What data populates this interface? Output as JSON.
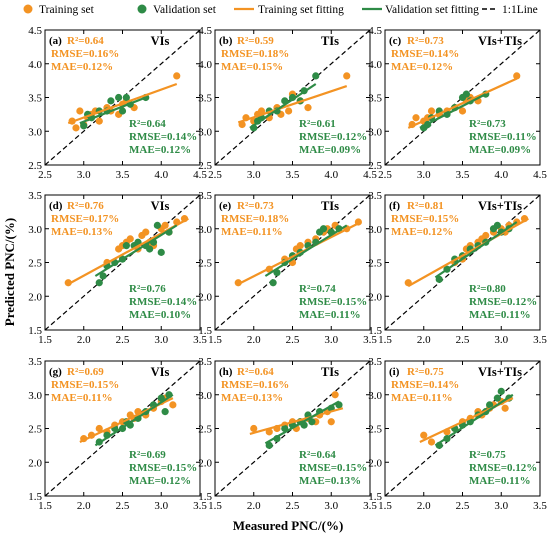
{
  "colors": {
    "training": "#F39323",
    "validation": "#2E8B46",
    "oneone": "#000000"
  },
  "legend": {
    "training_set": "Training set",
    "validation_set": "Validation set",
    "training_fit": "Training set fitting",
    "validation_fit": "Validation set fitting",
    "one_one": "1:1Line"
  },
  "axes": {
    "ylabel": "Predicted PNC/(%)",
    "xlabel": "Measured PNC/(%)"
  },
  "chart_data": [
    {
      "type": "scatter",
      "panel": "(a)",
      "title": "VIs",
      "xlim": [
        2.5,
        4.5
      ],
      "ylim": [
        2.5,
        4.5
      ],
      "xticks": [
        "2.5",
        "3.0",
        "3.5",
        "4.0",
        "4.5"
      ],
      "yticks": [
        "2.5",
        "3.0",
        "3.5",
        "4.0",
        "4.5"
      ],
      "train_stats": [
        "R²=0.64",
        "RMSE=0.16%",
        "MAE=0.12%"
      ],
      "val_stats": [
        "R²=0.64",
        "RMSE=0.14%",
        "MAE=0.12%"
      ],
      "train_points": [
        [
          2.85,
          3.15
        ],
        [
          2.9,
          3.05
        ],
        [
          2.95,
          3.3
        ],
        [
          3.0,
          3.1
        ],
        [
          3.05,
          3.2
        ],
        [
          3.1,
          3.25
        ],
        [
          3.15,
          3.3
        ],
        [
          3.2,
          3.15
        ],
        [
          3.3,
          3.35
        ],
        [
          3.35,
          3.3
        ],
        [
          3.45,
          3.25
        ],
        [
          3.5,
          3.4
        ],
        [
          3.55,
          3.45
        ],
        [
          3.65,
          3.35
        ],
        [
          4.2,
          3.82
        ]
      ],
      "val_points": [
        [
          3.0,
          3.08
        ],
        [
          3.05,
          3.25
        ],
        [
          3.1,
          3.2
        ],
        [
          3.2,
          3.3
        ],
        [
          3.3,
          3.3
        ],
        [
          3.35,
          3.45
        ],
        [
          3.45,
          3.5
        ],
        [
          3.5,
          3.3
        ],
        [
          3.55,
          3.5
        ],
        [
          3.6,
          3.4
        ],
        [
          3.8,
          3.5
        ]
      ],
      "train_fit": [
        [
          2.8,
          3.12
        ],
        [
          4.2,
          3.7
        ]
      ],
      "val_fit": [
        [
          2.95,
          3.12
        ],
        [
          3.8,
          3.5
        ]
      ]
    },
    {
      "type": "scatter",
      "panel": "(b)",
      "title": "TIs",
      "xlim": [
        2.5,
        4.5
      ],
      "ylim": [
        2.5,
        4.5
      ],
      "xticks": [
        "2.5",
        "3.0",
        "3.5",
        "4.0",
        "4.5"
      ],
      "yticks": [
        "2.5",
        "3.0",
        "3.5",
        "4.0",
        "4.5"
      ],
      "train_stats": [
        "R²=0.59",
        "RMSE=0.18%",
        "MAE=0.15%"
      ],
      "val_stats": [
        "R²=0.61",
        "RMSE=0.12%",
        "MAE=0.09%"
      ],
      "train_points": [
        [
          2.85,
          3.1
        ],
        [
          2.9,
          3.2
        ],
        [
          3.0,
          3.15
        ],
        [
          3.05,
          3.25
        ],
        [
          3.1,
          3.3
        ],
        [
          3.2,
          3.2
        ],
        [
          3.3,
          3.35
        ],
        [
          3.35,
          3.25
        ],
        [
          3.45,
          3.3
        ],
        [
          3.5,
          3.55
        ],
        [
          3.6,
          3.45
        ],
        [
          3.7,
          3.35
        ],
        [
          4.2,
          3.82
        ]
      ],
      "val_points": [
        [
          3.0,
          3.05
        ],
        [
          3.05,
          3.15
        ],
        [
          3.1,
          3.2
        ],
        [
          3.2,
          3.3
        ],
        [
          3.3,
          3.3
        ],
        [
          3.4,
          3.45
        ],
        [
          3.5,
          3.5
        ],
        [
          3.6,
          3.45
        ],
        [
          3.65,
          3.6
        ],
        [
          3.8,
          3.82
        ]
      ],
      "train_fit": [
        [
          2.8,
          3.13
        ],
        [
          4.2,
          3.67
        ]
      ],
      "val_fit": [
        [
          2.95,
          3.05
        ],
        [
          3.8,
          3.7
        ]
      ]
    },
    {
      "type": "scatter",
      "panel": "(c)",
      "title": "VIs+TIs",
      "xlim": [
        2.5,
        4.5
      ],
      "ylim": [
        2.5,
        4.5
      ],
      "xticks": [
        "2.5",
        "3.0",
        "3.5",
        "4.0",
        "4.5"
      ],
      "yticks": [
        "2.5",
        "3.0",
        "3.5",
        "4.0",
        "4.5"
      ],
      "train_stats": [
        "R²=0.73",
        "RMSE=0.14%",
        "MAE=0.12%"
      ],
      "val_stats": [
        "R²=0.73",
        "RMSE=0.11%",
        "MAE=0.09%"
      ],
      "train_points": [
        [
          2.85,
          3.1
        ],
        [
          2.9,
          3.2
        ],
        [
          3.0,
          3.15
        ],
        [
          3.05,
          3.2
        ],
        [
          3.1,
          3.3
        ],
        [
          3.2,
          3.25
        ],
        [
          3.3,
          3.3
        ],
        [
          3.4,
          3.35
        ],
        [
          3.5,
          3.3
        ],
        [
          3.55,
          3.45
        ],
        [
          3.6,
          3.5
        ],
        [
          3.7,
          3.45
        ],
        [
          4.2,
          3.82
        ]
      ],
      "val_points": [
        [
          3.0,
          3.05
        ],
        [
          3.05,
          3.1
        ],
        [
          3.1,
          3.2
        ],
        [
          3.2,
          3.3
        ],
        [
          3.3,
          3.25
        ],
        [
          3.4,
          3.35
        ],
        [
          3.5,
          3.5
        ],
        [
          3.55,
          3.55
        ],
        [
          3.6,
          3.45
        ],
        [
          3.8,
          3.55
        ]
      ],
      "train_fit": [
        [
          2.8,
          3.05
        ],
        [
          4.2,
          3.78
        ]
      ],
      "val_fit": [
        [
          2.95,
          3.05
        ],
        [
          3.8,
          3.55
        ]
      ]
    },
    {
      "type": "scatter",
      "panel": "(d)",
      "title": "VIs",
      "xlim": [
        1.5,
        3.5
      ],
      "ylim": [
        1.5,
        3.5
      ],
      "xticks": [
        "1.5",
        "2.0",
        "2.5",
        "3.0",
        "3.5"
      ],
      "yticks": [
        "1.5",
        "2.0",
        "2.5",
        "3.0",
        "3.5"
      ],
      "train_stats": [
        "R²=0.76",
        "RMSE=0.17%",
        "MAE=0.13%"
      ],
      "val_stats": [
        "R²=0.76",
        "RMSE=0.14%",
        "MAE=0.10%"
      ],
      "train_points": [
        [
          1.8,
          2.2
        ],
        [
          2.3,
          2.5
        ],
        [
          2.45,
          2.7
        ],
        [
          2.5,
          2.75
        ],
        [
          2.55,
          2.8
        ],
        [
          2.6,
          2.85
        ],
        [
          2.7,
          2.7
        ],
        [
          2.75,
          2.9
        ],
        [
          2.8,
          2.95
        ],
        [
          2.85,
          2.8
        ],
        [
          2.9,
          2.75
        ],
        [
          3.0,
          3.0
        ],
        [
          3.05,
          3.05
        ],
        [
          3.1,
          2.95
        ],
        [
          3.2,
          3.1
        ],
        [
          3.3,
          3.15
        ]
      ],
      "val_points": [
        [
          2.2,
          2.2
        ],
        [
          2.25,
          2.3
        ],
        [
          2.3,
          2.45
        ],
        [
          2.4,
          2.5
        ],
        [
          2.5,
          2.55
        ],
        [
          2.55,
          2.75
        ],
        [
          2.65,
          2.75
        ],
        [
          2.7,
          2.8
        ],
        [
          2.8,
          2.75
        ],
        [
          2.85,
          2.7
        ],
        [
          2.9,
          2.8
        ],
        [
          2.95,
          3.05
        ],
        [
          3.0,
          2.65
        ],
        [
          3.1,
          2.95
        ]
      ],
      "train_fit": [
        [
          1.8,
          2.18
        ],
        [
          3.35,
          3.15
        ]
      ],
      "val_fit": [
        [
          2.15,
          2.3
        ],
        [
          3.2,
          3.05
        ]
      ]
    },
    {
      "type": "scatter",
      "panel": "(e)",
      "title": "TIs",
      "xlim": [
        1.5,
        3.5
      ],
      "ylim": [
        1.5,
        3.5
      ],
      "xticks": [
        "1.5",
        "2.0",
        "2.5",
        "3.0",
        "3.5"
      ],
      "yticks": [
        "1.5",
        "2.0",
        "2.5",
        "3.0",
        "3.5"
      ],
      "train_stats": [
        "R²=0.73",
        "RMSE=0.18%",
        "MAE=0.11%"
      ],
      "val_stats": [
        "R²=0.74",
        "RMSE=0.15%",
        "MAE=0.11%"
      ],
      "train_points": [
        [
          1.8,
          2.2
        ],
        [
          2.2,
          2.4
        ],
        [
          2.4,
          2.55
        ],
        [
          2.5,
          2.5
        ],
        [
          2.55,
          2.7
        ],
        [
          2.6,
          2.75
        ],
        [
          2.7,
          2.8
        ],
        [
          2.8,
          2.85
        ],
        [
          2.9,
          2.95
        ],
        [
          2.95,
          3.0
        ],
        [
          3.0,
          2.95
        ],
        [
          3.05,
          3.05
        ],
        [
          3.2,
          3.0
        ],
        [
          3.35,
          3.1
        ]
      ],
      "val_points": [
        [
          2.25,
          2.2
        ],
        [
          2.3,
          2.35
        ],
        [
          2.4,
          2.5
        ],
        [
          2.5,
          2.6
        ],
        [
          2.6,
          2.65
        ],
        [
          2.7,
          2.75
        ],
        [
          2.8,
          2.8
        ],
        [
          2.85,
          2.95
        ],
        [
          2.9,
          3.0
        ],
        [
          3.0,
          2.95
        ],
        [
          3.1,
          3.0
        ]
      ],
      "train_fit": [
        [
          1.8,
          2.18
        ],
        [
          3.35,
          3.08
        ]
      ],
      "val_fit": [
        [
          2.15,
          2.3
        ],
        [
          3.2,
          3.05
        ]
      ]
    },
    {
      "type": "scatter",
      "panel": "(f)",
      "title": "VIs+TIs",
      "xlim": [
        1.5,
        3.5
      ],
      "ylim": [
        1.5,
        3.5
      ],
      "xticks": [
        "1.5",
        "2.0",
        "2.5",
        "3.0",
        "3.5"
      ],
      "yticks": [
        "1.5",
        "2.0",
        "2.5",
        "3.0",
        "3.5"
      ],
      "train_stats": [
        "R²=0.81",
        "RMSE=0.15%",
        "MAE=0.12%"
      ],
      "val_stats": [
        "R²=0.80",
        "RMSE=0.12%",
        "MAE=0.11%"
      ],
      "train_points": [
        [
          1.8,
          2.2
        ],
        [
          2.4,
          2.5
        ],
        [
          2.5,
          2.55
        ],
        [
          2.55,
          2.7
        ],
        [
          2.6,
          2.75
        ],
        [
          2.7,
          2.8
        ],
        [
          2.75,
          2.85
        ],
        [
          2.8,
          2.9
        ],
        [
          2.9,
          2.95
        ],
        [
          3.0,
          3.0
        ],
        [
          3.05,
          2.95
        ],
        [
          3.1,
          3.05
        ],
        [
          3.2,
          3.1
        ],
        [
          3.3,
          3.15
        ]
      ],
      "val_points": [
        [
          2.2,
          2.25
        ],
        [
          2.3,
          2.4
        ],
        [
          2.4,
          2.55
        ],
        [
          2.5,
          2.6
        ],
        [
          2.6,
          2.7
        ],
        [
          2.7,
          2.75
        ],
        [
          2.8,
          2.8
        ],
        [
          2.9,
          3.0
        ],
        [
          2.95,
          3.05
        ],
        [
          3.0,
          2.95
        ],
        [
          3.1,
          3.0
        ]
      ],
      "train_fit": [
        [
          1.8,
          2.15
        ],
        [
          3.35,
          3.15
        ]
      ],
      "val_fit": [
        [
          2.15,
          2.28
        ],
        [
          3.2,
          3.1
        ]
      ]
    },
    {
      "type": "scatter",
      "panel": "(g)",
      "title": "VIs",
      "xlim": [
        1.5,
        3.5
      ],
      "ylim": [
        1.5,
        3.5
      ],
      "xticks": [
        "1.5",
        "2.0",
        "2.5",
        "3.0",
        "3.5"
      ],
      "yticks": [
        "1.5",
        "2.0",
        "2.5",
        "3.0",
        "3.5"
      ],
      "train_stats": [
        "R²=0.69",
        "RMSE=0.15%",
        "MAE=0.11%"
      ],
      "val_stats": [
        "R²=0.69",
        "RMSE=0.15%",
        "MAE=0.12%"
      ],
      "train_points": [
        [
          2.0,
          2.35
        ],
        [
          2.1,
          2.4
        ],
        [
          2.2,
          2.5
        ],
        [
          2.3,
          2.45
        ],
        [
          2.4,
          2.55
        ],
        [
          2.5,
          2.6
        ],
        [
          2.6,
          2.7
        ],
        [
          2.65,
          2.65
        ],
        [
          2.7,
          2.75
        ],
        [
          2.8,
          2.7
        ],
        [
          2.9,
          2.8
        ],
        [
          3.0,
          2.9
        ],
        [
          3.05,
          2.95
        ],
        [
          3.15,
          2.85
        ]
      ],
      "val_points": [
        [
          2.2,
          2.3
        ],
        [
          2.3,
          2.4
        ],
        [
          2.4,
          2.5
        ],
        [
          2.5,
          2.5
        ],
        [
          2.55,
          2.6
        ],
        [
          2.6,
          2.55
        ],
        [
          2.7,
          2.65
        ],
        [
          2.8,
          2.75
        ],
        [
          2.9,
          2.85
        ],
        [
          3.0,
          2.95
        ],
        [
          3.05,
          2.75
        ],
        [
          3.1,
          3.0
        ]
      ],
      "train_fit": [
        [
          1.95,
          2.3
        ],
        [
          3.15,
          2.95
        ]
      ],
      "val_fit": [
        [
          2.15,
          2.25
        ],
        [
          3.15,
          3.0
        ]
      ]
    },
    {
      "type": "scatter",
      "panel": "(h)",
      "title": "TIs",
      "xlim": [
        1.5,
        3.5
      ],
      "ylim": [
        1.5,
        3.5
      ],
      "xticks": [
        "1.5",
        "2.0",
        "2.5",
        "3.0",
        "3.5"
      ],
      "yticks": [
        "1.5",
        "2.0",
        "2.5",
        "3.0",
        "3.5"
      ],
      "train_stats": [
        "R²=0.64",
        "RMSE=0.16%",
        "MAE=0.13%"
      ],
      "val_stats": [
        "R²=0.64",
        "RMSE=0.15%",
        "MAE=0.13%"
      ],
      "train_points": [
        [
          2.0,
          2.5
        ],
        [
          2.2,
          2.45
        ],
        [
          2.3,
          2.5
        ],
        [
          2.4,
          2.55
        ],
        [
          2.5,
          2.6
        ],
        [
          2.55,
          2.5
        ],
        [
          2.6,
          2.6
        ],
        [
          2.7,
          2.65
        ],
        [
          2.8,
          2.6
        ],
        [
          2.85,
          2.7
        ],
        [
          2.95,
          2.75
        ],
        [
          3.0,
          2.6
        ],
        [
          3.05,
          3.0
        ]
      ],
      "val_points": [
        [
          2.2,
          2.25
        ],
        [
          2.3,
          2.35
        ],
        [
          2.4,
          2.5
        ],
        [
          2.5,
          2.55
        ],
        [
          2.6,
          2.6
        ],
        [
          2.65,
          2.55
        ],
        [
          2.7,
          2.7
        ],
        [
          2.75,
          2.6
        ],
        [
          2.85,
          2.75
        ],
        [
          3.0,
          2.8
        ],
        [
          3.1,
          2.85
        ]
      ],
      "train_fit": [
        [
          1.95,
          2.42
        ],
        [
          3.15,
          2.8
        ]
      ],
      "val_fit": [
        [
          2.15,
          2.28
        ],
        [
          3.1,
          2.9
        ]
      ]
    },
    {
      "type": "scatter",
      "panel": "(i)",
      "title": "VIs+TIs",
      "xlim": [
        1.5,
        3.5
      ],
      "ylim": [
        1.5,
        3.5
      ],
      "xticks": [
        "1.5",
        "2.0",
        "2.5",
        "3.0",
        "3.5"
      ],
      "yticks": [
        "1.5",
        "2.0",
        "2.5",
        "3.0",
        "3.5"
      ],
      "train_stats": [
        "R²=0.75",
        "RMSE=0.14%",
        "MAE=0.11%"
      ],
      "val_stats": [
        "R²=0.75",
        "RMSE=0.12%",
        "MAE=0.11%"
      ],
      "train_points": [
        [
          2.0,
          2.4
        ],
        [
          2.1,
          2.3
        ],
        [
          2.3,
          2.45
        ],
        [
          2.4,
          2.5
        ],
        [
          2.5,
          2.6
        ],
        [
          2.6,
          2.65
        ],
        [
          2.7,
          2.75
        ],
        [
          2.75,
          2.7
        ],
        [
          2.85,
          2.8
        ],
        [
          2.9,
          2.85
        ],
        [
          3.0,
          2.9
        ],
        [
          3.05,
          2.8
        ],
        [
          3.1,
          2.95
        ]
      ],
      "val_points": [
        [
          2.2,
          2.25
        ],
        [
          2.3,
          2.35
        ],
        [
          2.4,
          2.5
        ],
        [
          2.5,
          2.55
        ],
        [
          2.6,
          2.6
        ],
        [
          2.7,
          2.7
        ],
        [
          2.8,
          2.75
        ],
        [
          2.85,
          2.85
        ],
        [
          2.95,
          2.95
        ],
        [
          3.0,
          3.05
        ],
        [
          3.1,
          2.95
        ]
      ],
      "train_fit": [
        [
          1.95,
          2.3
        ],
        [
          3.15,
          2.95
        ]
      ],
      "val_fit": [
        [
          2.15,
          2.25
        ],
        [
          3.15,
          3.0
        ]
      ]
    }
  ]
}
